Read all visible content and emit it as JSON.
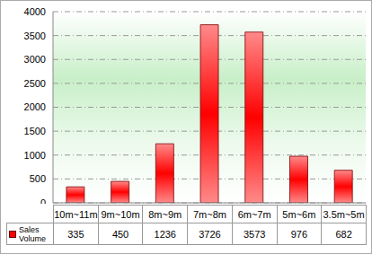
{
  "chart_data": {
    "type": "bar",
    "categories": [
      "10m~11m",
      "9m~10m",
      "8m~9m",
      "7m~8m",
      "6m~7m",
      "5m~6m",
      "3.5m~5m"
    ],
    "series": [
      {
        "name": "Sales Volume",
        "color": "#ff0000",
        "values": [
          335,
          450,
          1236,
          3726,
          3573,
          976,
          682
        ]
      }
    ],
    "ylim": [
      0,
      4000
    ],
    "yticks": [
      0,
      500,
      1000,
      1500,
      2000,
      2500,
      3000,
      3500,
      4000
    ],
    "grid": true
  }
}
